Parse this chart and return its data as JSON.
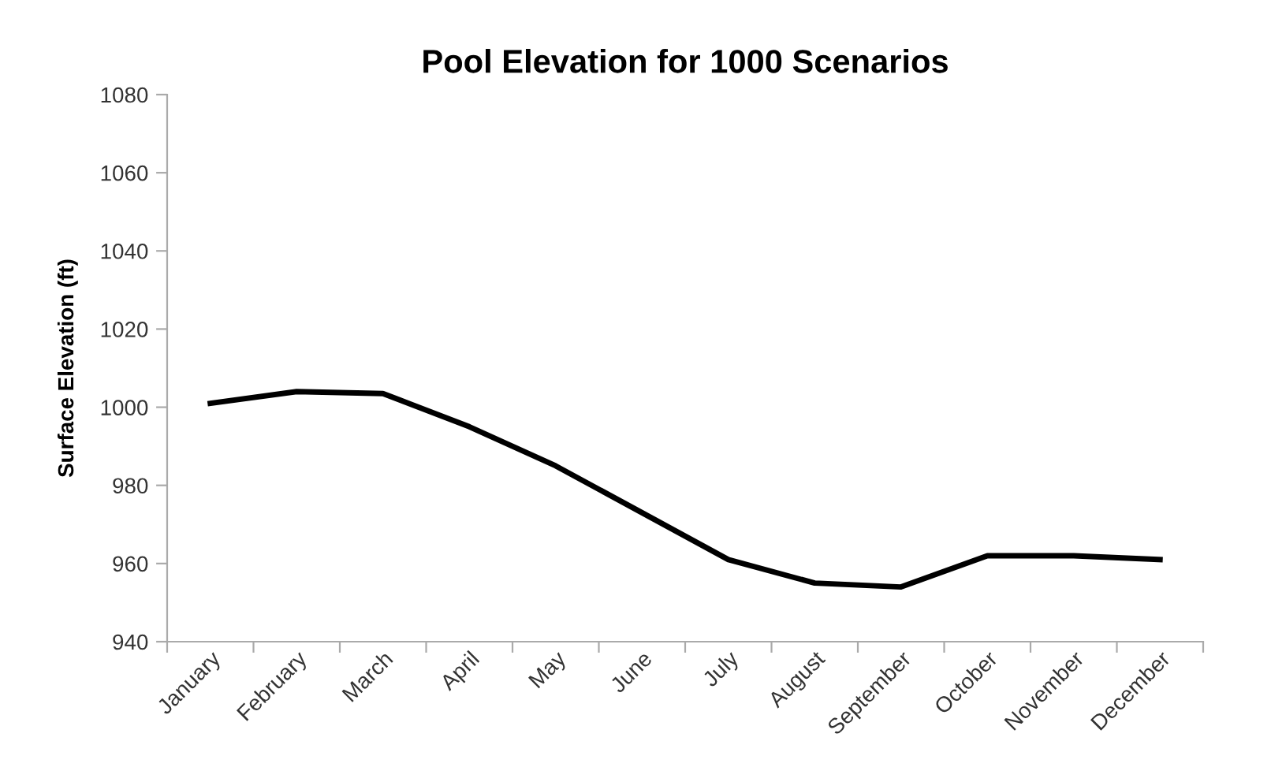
{
  "chart_data": {
    "type": "line",
    "title": "Pool Elevation for 1000 Scenarios",
    "ylabel": "Surface Elevation (ft)",
    "categories": [
      "January",
      "February",
      "March",
      "April",
      "May",
      "June",
      "July",
      "August",
      "September",
      "October",
      "November",
      "December"
    ],
    "series": [
      {
        "color": "#000000",
        "values": [
          1001,
          1004,
          1003.5,
          995,
          985,
          973,
          961,
          955,
          954,
          962,
          962,
          961
        ]
      }
    ],
    "ylim": [
      940,
      1080
    ],
    "yticks": [
      940,
      960,
      980,
      1000,
      1020,
      1040,
      1060,
      1080
    ],
    "grid": false,
    "marker": "none",
    "line_style": "solid"
  }
}
